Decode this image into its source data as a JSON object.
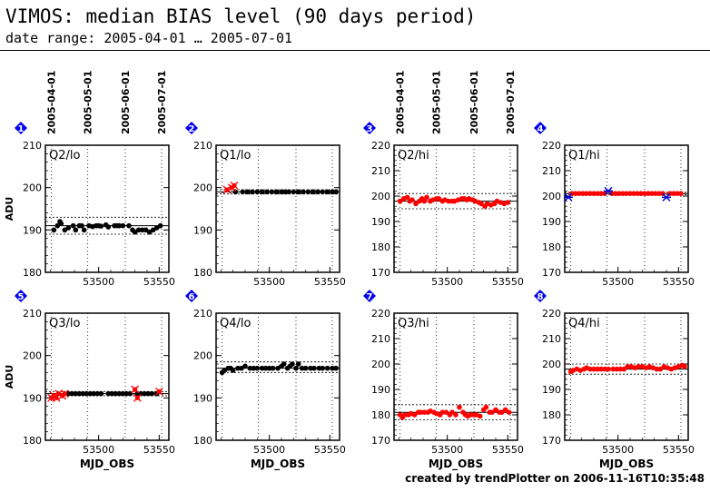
{
  "header": {
    "title": "VIMOS: median BIAS level (90 days period)",
    "subtitle": "date range: 2005-04-01 … 2005-07-01"
  },
  "footer": "created by trendPlotter on 2006-11-16T10:35:48",
  "colors": {
    "ok": "#000000",
    "outlier": "#ff0000",
    "flag": "#0000cc",
    "badge": "#0000ee",
    "red_series": "#ff0000"
  },
  "chart_data": {
    "type": "scatter",
    "xlabel": "MJD_OBS",
    "ylabel": "ADU",
    "x_ticks": [
      53500,
      53550
    ],
    "xlim": [
      53456,
      53558
    ],
    "date_ticks": [
      {
        "label": "2005-04-01",
        "mjd": 53461
      },
      {
        "label": "2005-05-01",
        "mjd": 53491
      },
      {
        "label": "2005-06-01",
        "mjd": 53522
      },
      {
        "label": "2005-07-01",
        "mjd": 53552
      }
    ],
    "panels": [
      {
        "badge": "1",
        "label": "Q2/lo",
        "ylim": [
          180,
          210
        ],
        "yticks": [
          180,
          190,
          200,
          210
        ],
        "color": "black",
        "mean": 191,
        "band": [
          189,
          193
        ],
        "points": [
          [
            53463,
            190
          ],
          [
            53466,
            191
          ],
          [
            53468,
            192
          ],
          [
            53469,
            191.5
          ],
          [
            53472,
            190
          ],
          [
            53475,
            190.5
          ],
          [
            53479,
            191
          ],
          [
            53481,
            190
          ],
          [
            53484,
            191
          ],
          [
            53486,
            191
          ],
          [
            53488,
            190
          ],
          [
            53492,
            191
          ],
          [
            53495,
            190.8
          ],
          [
            53498,
            191
          ],
          [
            53500,
            191
          ],
          [
            53502,
            190.9
          ],
          [
            53506,
            191.2
          ],
          [
            53508,
            190.7
          ],
          [
            53513,
            191
          ],
          [
            53515,
            191
          ],
          [
            53517,
            191
          ],
          [
            53520,
            191
          ],
          [
            53525,
            191
          ],
          [
            53528,
            190
          ],
          [
            53530,
            189.5
          ],
          [
            53533,
            190
          ],
          [
            53536,
            190
          ],
          [
            53539,
            190
          ],
          [
            53542,
            189.5
          ],
          [
            53545,
            190
          ],
          [
            53548,
            190.5
          ],
          [
            53551,
            191
          ]
        ],
        "outliers": [],
        "flags": []
      },
      {
        "badge": "2",
        "label": "Q1/lo",
        "ylim": [
          180,
          210
        ],
        "yticks": [
          180,
          190,
          200,
          210
        ],
        "color": "black",
        "mean": 199,
        "band": [
          198.5,
          199.5
        ],
        "points": [
          [
            53472,
            199
          ],
          [
            53478,
            199
          ],
          [
            53482,
            199
          ],
          [
            53486,
            199
          ],
          [
            53490,
            199
          ],
          [
            53494,
            199
          ],
          [
            53498,
            199
          ],
          [
            53502,
            199
          ],
          [
            53506,
            199
          ],
          [
            53510,
            199
          ],
          [
            53513,
            199
          ],
          [
            53516,
            199
          ],
          [
            53520,
            199
          ],
          [
            53524,
            199
          ],
          [
            53528,
            199
          ],
          [
            53532,
            199
          ],
          [
            53536,
            199
          ],
          [
            53540,
            199
          ],
          [
            53544,
            199
          ],
          [
            53548,
            199
          ],
          [
            53552,
            199
          ],
          [
            53555,
            199
          ]
        ],
        "outliers": [
          [
            53465,
            199.5
          ],
          [
            53469,
            200
          ],
          [
            53471,
            200.5
          ]
        ],
        "flags": []
      },
      {
        "badge": "3",
        "label": "Q2/hi",
        "ylim": [
          170,
          220
        ],
        "yticks": [
          170,
          180,
          190,
          200,
          210,
          220
        ],
        "color": "red",
        "mean": 198,
        "band": [
          195,
          201
        ],
        "points": [
          [
            53461,
            198
          ],
          [
            53464,
            199
          ],
          [
            53467,
            199.5
          ],
          [
            53469,
            198
          ],
          [
            53471,
            198.5
          ],
          [
            53474,
            197
          ],
          [
            53477,
            198
          ],
          [
            53479,
            199
          ],
          [
            53481,
            198
          ],
          [
            53483,
            199.5
          ],
          [
            53486,
            198
          ],
          [
            53488,
            198.5
          ],
          [
            53491,
            199
          ],
          [
            53493,
            199
          ],
          [
            53496,
            198
          ],
          [
            53498,
            198.5
          ],
          [
            53501,
            198
          ],
          [
            53504,
            198
          ],
          [
            53506,
            198
          ],
          [
            53509,
            198.5
          ],
          [
            53512,
            199
          ],
          [
            53514,
            199
          ],
          [
            53516,
            198.5
          ],
          [
            53518,
            199
          ],
          [
            53521,
            198.5
          ],
          [
            53523,
            198
          ],
          [
            53526,
            197.5
          ],
          [
            53528,
            197
          ],
          [
            53531,
            196
          ],
          [
            53533,
            197
          ],
          [
            53536,
            196.5
          ],
          [
            53539,
            197
          ],
          [
            53541,
            198
          ],
          [
            53544,
            197.5
          ],
          [
            53547,
            197
          ],
          [
            53550,
            197.5
          ]
        ],
        "outliers": [],
        "flags": []
      },
      {
        "badge": "4",
        "label": "Q1/hi",
        "ylim": [
          170,
          220
        ],
        "yticks": [
          170,
          180,
          190,
          200,
          210,
          220
        ],
        "color": "red",
        "mean": 201,
        "band": [
          200.5,
          201.5
        ],
        "points": [
          [
            53462,
            201
          ],
          [
            53465,
            201
          ],
          [
            53468,
            201
          ],
          [
            53471,
            201
          ],
          [
            53474,
            201
          ],
          [
            53477,
            201
          ],
          [
            53480,
            201
          ],
          [
            53483,
            201
          ],
          [
            53486,
            201
          ],
          [
            53489,
            201
          ],
          [
            53495,
            201
          ],
          [
            53498,
            201
          ],
          [
            53501,
            201
          ],
          [
            53504,
            201
          ],
          [
            53507,
            201
          ],
          [
            53510,
            201
          ],
          [
            53513,
            201
          ],
          [
            53516,
            201
          ],
          [
            53519,
            201
          ],
          [
            53522,
            201
          ],
          [
            53525,
            201
          ],
          [
            53528,
            201
          ],
          [
            53531,
            201
          ],
          [
            53534,
            201
          ],
          [
            53537,
            201
          ],
          [
            53543,
            201
          ],
          [
            53546,
            201
          ],
          [
            53549,
            201
          ],
          [
            53552,
            201
          ]
        ],
        "outliers": [],
        "flags": [
          [
            53459,
            199.5
          ],
          [
            53492,
            202
          ],
          [
            53540,
            199.5
          ]
        ]
      },
      {
        "badge": "5",
        "label": "Q3/lo",
        "ylim": [
          180,
          210
        ],
        "yticks": [
          180,
          190,
          200,
          210
        ],
        "color": "black",
        "mean": 191,
        "band": [
          190.5,
          191.5
        ],
        "points": [
          [
            53475,
            191
          ],
          [
            53478,
            191
          ],
          [
            53481,
            191
          ],
          [
            53484,
            191
          ],
          [
            53487,
            191
          ],
          [
            53490,
            191
          ],
          [
            53493,
            191
          ],
          [
            53496,
            191
          ],
          [
            53499,
            191
          ],
          [
            53502,
            191
          ],
          [
            53508,
            191
          ],
          [
            53511,
            191
          ],
          [
            53514,
            191
          ],
          [
            53517,
            191
          ],
          [
            53520,
            191
          ],
          [
            53523,
            191
          ],
          [
            53526,
            191
          ],
          [
            53532,
            191
          ],
          [
            53535,
            191
          ],
          [
            53538,
            191
          ],
          [
            53541,
            191
          ],
          [
            53544,
            191
          ],
          [
            53548,
            191
          ]
        ],
        "outliers": [
          [
            53461,
            190
          ],
          [
            53463,
            190.5
          ],
          [
            53465,
            190
          ],
          [
            53467,
            191
          ],
          [
            53470,
            190.5
          ],
          [
            53472,
            191
          ],
          [
            53530,
            192
          ],
          [
            53532,
            190
          ],
          [
            53550,
            191.5
          ]
        ],
        "flags": []
      },
      {
        "badge": "6",
        "label": "Q4/lo",
        "ylim": [
          180,
          210
        ],
        "yticks": [
          180,
          190,
          200,
          210
        ],
        "color": "black",
        "mean": 197,
        "band": [
          196,
          198.5
        ],
        "points": [
          [
            53461,
            196
          ],
          [
            53463,
            196.5
          ],
          [
            53466,
            197
          ],
          [
            53468,
            197
          ],
          [
            53470,
            196.5
          ],
          [
            53474,
            197
          ],
          [
            53477,
            197
          ],
          [
            53480,
            197.5
          ],
          [
            53484,
            197
          ],
          [
            53487,
            197
          ],
          [
            53490,
            197
          ],
          [
            53494,
            197
          ],
          [
            53497,
            197
          ],
          [
            53500,
            197
          ],
          [
            53503,
            197
          ],
          [
            53507,
            197
          ],
          [
            53510,
            197.5
          ],
          [
            53512,
            198
          ],
          [
            53515,
            197
          ],
          [
            53517,
            197.5
          ],
          [
            53519,
            198
          ],
          [
            53522,
            197
          ],
          [
            53524,
            198
          ],
          [
            53527,
            197
          ],
          [
            53530,
            197
          ],
          [
            53534,
            197
          ],
          [
            53537,
            197
          ],
          [
            53541,
            197
          ],
          [
            53544,
            197
          ],
          [
            53548,
            197
          ],
          [
            53552,
            197
          ],
          [
            53555,
            197
          ]
        ],
        "outliers": [],
        "flags": []
      },
      {
        "badge": "7",
        "label": "Q3/hi",
        "ylim": [
          170,
          220
        ],
        "yticks": [
          170,
          180,
          190,
          200,
          210,
          220
        ],
        "color": "red",
        "mean": 181,
        "band": [
          178,
          184
        ],
        "points": [
          [
            53461,
            180
          ],
          [
            53463,
            179
          ],
          [
            53465,
            180
          ],
          [
            53468,
            180
          ],
          [
            53470,
            180.5
          ],
          [
            53473,
            180
          ],
          [
            53476,
            181
          ],
          [
            53478,
            181
          ],
          [
            53481,
            181
          ],
          [
            53484,
            181
          ],
          [
            53486,
            181.5
          ],
          [
            53489,
            181
          ],
          [
            53491,
            180.5
          ],
          [
            53494,
            180
          ],
          [
            53496,
            181
          ],
          [
            53499,
            181
          ],
          [
            53502,
            180
          ],
          [
            53504,
            181
          ],
          [
            53507,
            180
          ],
          [
            53510,
            183
          ],
          [
            53513,
            181
          ],
          [
            53515,
            180
          ],
          [
            53517,
            179.5
          ],
          [
            53519,
            180
          ],
          [
            53522,
            180
          ],
          [
            53524,
            180
          ],
          [
            53527,
            179.5
          ],
          [
            53530,
            182
          ],
          [
            53532,
            183
          ],
          [
            53535,
            181
          ],
          [
            53537,
            181
          ],
          [
            53540,
            182
          ],
          [
            53543,
            181
          ],
          [
            53545,
            181
          ],
          [
            53548,
            182
          ],
          [
            53551,
            181
          ]
        ],
        "outliers": [],
        "flags": []
      },
      {
        "badge": "8",
        "label": "Q4/hi",
        "ylim": [
          170,
          220
        ],
        "yticks": [
          170,
          180,
          190,
          200,
          210,
          220
        ],
        "color": "red",
        "mean": 198,
        "band": [
          196,
          200
        ],
        "points": [
          [
            53461,
            197
          ],
          [
            53463,
            197.5
          ],
          [
            53466,
            198
          ],
          [
            53469,
            197.5
          ],
          [
            53472,
            198
          ],
          [
            53474,
            198.5
          ],
          [
            53477,
            198
          ],
          [
            53480,
            198
          ],
          [
            53483,
            198
          ],
          [
            53486,
            198
          ],
          [
            53489,
            198
          ],
          [
            53492,
            198
          ],
          [
            53496,
            198
          ],
          [
            53499,
            198
          ],
          [
            53502,
            198
          ],
          [
            53505,
            198
          ],
          [
            53508,
            199
          ],
          [
            53511,
            199
          ],
          [
            53514,
            198.5
          ],
          [
            53517,
            199
          ],
          [
            53520,
            199
          ],
          [
            53523,
            198.5
          ],
          [
            53526,
            199
          ],
          [
            53529,
            198.5
          ],
          [
            53532,
            198
          ],
          [
            53535,
            198
          ],
          [
            53538,
            199
          ],
          [
            53541,
            198.5
          ],
          [
            53544,
            198
          ],
          [
            53547,
            198.5
          ],
          [
            53550,
            199
          ],
          [
            53553,
            199.5
          ],
          [
            53555,
            199
          ]
        ],
        "outliers": [],
        "flags": []
      }
    ]
  }
}
